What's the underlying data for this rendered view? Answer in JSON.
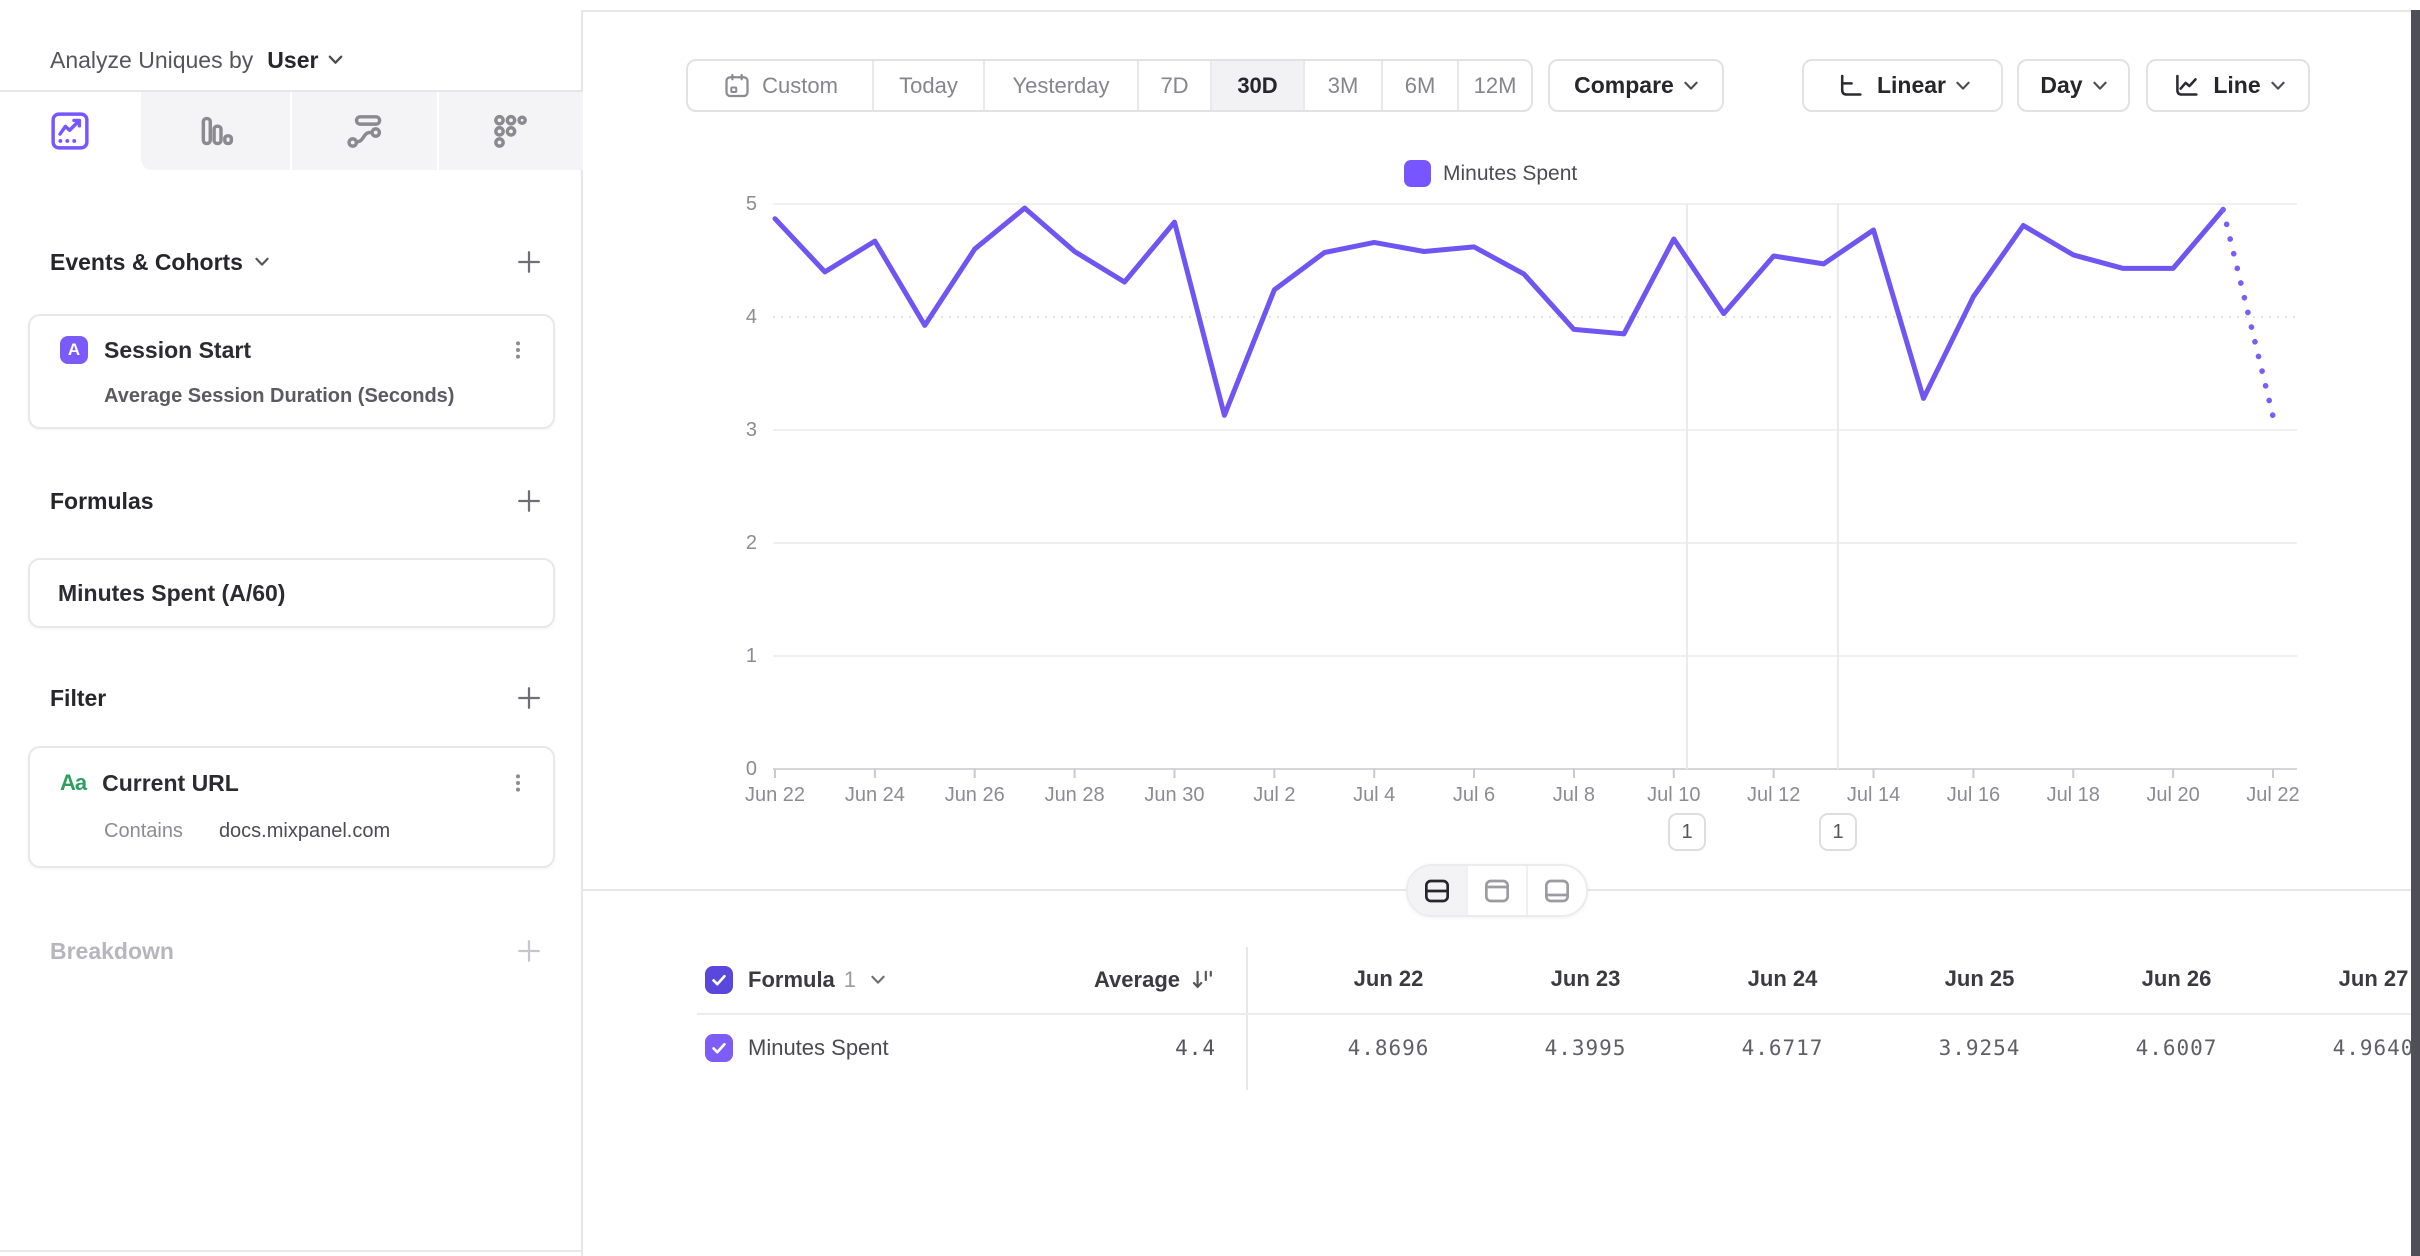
{
  "sidebar": {
    "analyze_label": "Analyze Uniques by",
    "analyze_value": "User",
    "tabs": [
      "insights-line",
      "bar-chart",
      "flow",
      "metric-grid"
    ],
    "events_section": {
      "title": "Events & Cohorts"
    },
    "event_card": {
      "badge": "A",
      "title": "Session Start",
      "subtitle": "Average Session Duration (Seconds)"
    },
    "formulas_section": {
      "title": "Formulas"
    },
    "formula_card": {
      "title": "Minutes Spent (A/60)"
    },
    "filter_section": {
      "title": "Filter"
    },
    "filter_card": {
      "badge": "Aa",
      "title": "Current URL",
      "operator": "Contains",
      "value": "docs.mixpanel.com"
    },
    "breakdown_section": {
      "title": "Breakdown"
    }
  },
  "toolbar": {
    "date_ranges": [
      "Custom",
      "Today",
      "Yesterday",
      "7D",
      "30D",
      "3M",
      "6M",
      "12M"
    ],
    "selected_range": "30D",
    "compare_label": "Compare",
    "scale_label": "Linear",
    "granularity_label": "Day",
    "chart_type_label": "Line"
  },
  "chart_data": {
    "type": "line",
    "title": "",
    "legend": [
      {
        "name": "Minutes Spent",
        "color": "#7856FF"
      }
    ],
    "x": [
      "Jun 22",
      "Jun 23",
      "Jun 24",
      "Jun 25",
      "Jun 26",
      "Jun 27",
      "Jun 28",
      "Jun 29",
      "Jun 30",
      "Jul 1",
      "Jul 2",
      "Jul 3",
      "Jul 4",
      "Jul 5",
      "Jul 6",
      "Jul 7",
      "Jul 8",
      "Jul 9",
      "Jul 10",
      "Jul 11",
      "Jul 12",
      "Jul 13",
      "Jul 14",
      "Jul 15",
      "Jul 16",
      "Jul 17",
      "Jul 18",
      "Jul 19",
      "Jul 20",
      "Jul 21",
      "Jul 22"
    ],
    "series": [
      {
        "name": "Minutes Spent",
        "values": [
          4.8696,
          4.3995,
          4.6717,
          3.9254,
          4.6007,
          4.964,
          4.58,
          4.31,
          4.84,
          3.13,
          4.24,
          4.57,
          4.66,
          4.58,
          4.62,
          4.38,
          3.89,
          3.85,
          4.69,
          4.03,
          4.54,
          4.47,
          4.77,
          3.28,
          4.18,
          4.81,
          4.55,
          4.43,
          4.43,
          4.95,
          3.12
        ]
      }
    ],
    "incomplete_from_index": 29,
    "y_ticks": [
      0,
      1,
      2,
      3,
      4,
      5
    ],
    "x_tick_labels": [
      "Jun 22",
      "Jun 24",
      "Jun 26",
      "Jun 28",
      "Jun 30",
      "Jul 2",
      "Jul 4",
      "Jul 6",
      "Jul 8",
      "Jul 10",
      "Jul 12",
      "Jul 14",
      "Jul 16",
      "Jul 18",
      "Jul 20",
      "Jul 22"
    ],
    "ylim": [
      0,
      5
    ],
    "grid": true,
    "legend_position": "top",
    "annotations": [
      {
        "label": "1",
        "x": "Jul 10"
      },
      {
        "label": "1",
        "x": "Jul 13"
      }
    ]
  },
  "view_toggle": [
    "split-view",
    "chart-only-view",
    "table-only-view"
  ],
  "table": {
    "series_picker_label": "Formula",
    "series_picker_index": "1",
    "average_label": "Average",
    "columns": [
      "Jun 22",
      "Jun 23",
      "Jun 24",
      "Jun 25",
      "Jun 26",
      "Jun 27"
    ],
    "rows": [
      {
        "name": "Minutes Spent",
        "average": "4.4",
        "values": [
          "4.8696",
          "4.3995",
          "4.6717",
          "3.9254",
          "4.6007",
          "4.9640"
        ]
      }
    ]
  }
}
